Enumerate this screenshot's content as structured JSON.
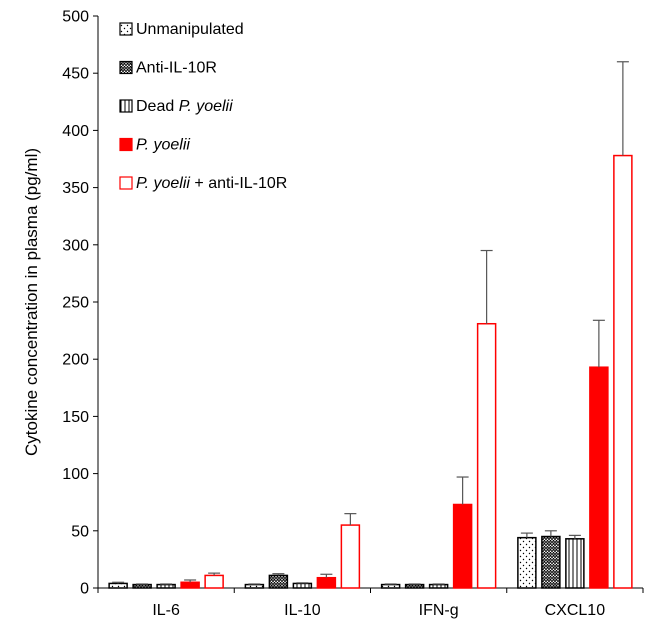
{
  "chart_data": {
    "type": "bar",
    "ylabel": "Cytokine concentration in plasma (pg/ml)",
    "ylim": [
      0,
      500
    ],
    "yticks": [
      0,
      50,
      100,
      150,
      200,
      250,
      300,
      350,
      400,
      450,
      500
    ],
    "categories": [
      "IL-6",
      "IL-10",
      "IFN-g",
      "CXCL10"
    ],
    "legend_position": "top-left",
    "series": [
      {
        "name": "Unmanipulated",
        "name_parts": [
          {
            "text": "Unmanipulated",
            "italic": false
          }
        ],
        "pattern": "dots",
        "color": "#000000",
        "values": [
          4,
          3,
          3,
          44
        ],
        "errors": [
          1,
          0.5,
          0.5,
          4
        ]
      },
      {
        "name": "Anti-IL-10R",
        "name_parts": [
          {
            "text": "Anti-IL-10R",
            "italic": false
          }
        ],
        "pattern": "zigzag",
        "color": "#000000",
        "values": [
          3,
          11,
          3,
          45
        ],
        "errors": [
          0.5,
          1.5,
          0.5,
          5
        ]
      },
      {
        "name": "Dead P. yoelii",
        "name_parts": [
          {
            "text": "Dead ",
            "italic": false
          },
          {
            "text": "P. yoelii",
            "italic": true
          }
        ],
        "pattern": "vertical-lines",
        "color": "#000000",
        "values": [
          3,
          4,
          3,
          43
        ],
        "errors": [
          0.5,
          0.5,
          0.5,
          3
        ]
      },
      {
        "name": "P. yoelii",
        "name_parts": [
          {
            "text": "P. yoelii",
            "italic": true
          }
        ],
        "pattern": "solid",
        "color": "#ff0000",
        "values": [
          5,
          9,
          73,
          193
        ],
        "errors": [
          2,
          3,
          24,
          41
        ]
      },
      {
        "name": "P. yoelii + anti-IL-10R",
        "name_parts": [
          {
            "text": "P. yoelii",
            "italic": true
          },
          {
            "text": " + anti-IL-10R",
            "italic": false
          }
        ],
        "pattern": "hollow",
        "color": "#ff0000",
        "values": [
          11,
          55,
          231,
          378
        ],
        "errors": [
          2,
          10,
          64,
          82
        ]
      }
    ]
  }
}
